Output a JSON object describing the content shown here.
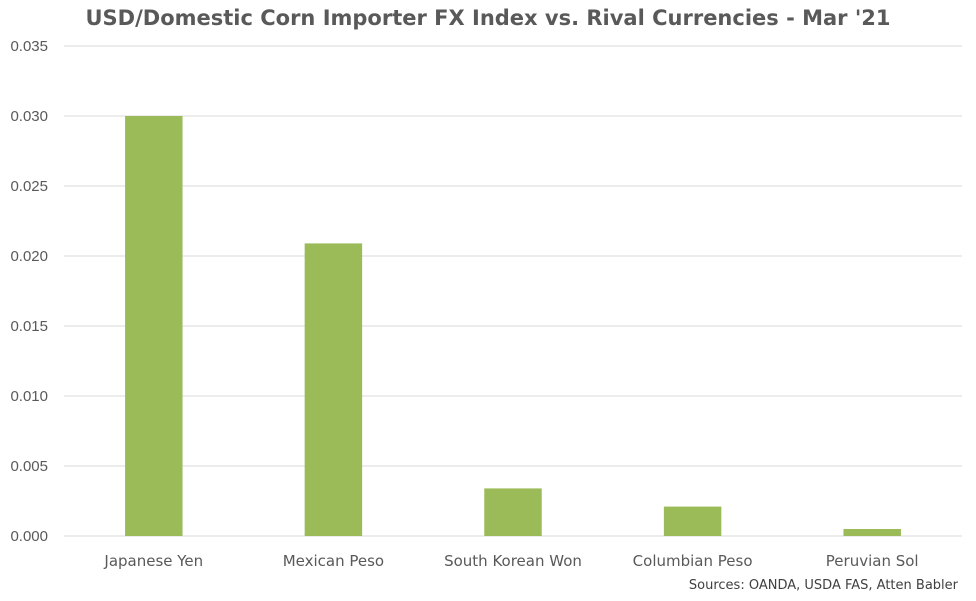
{
  "chart_data": {
    "type": "bar",
    "title": "USD/Domestic Corn Importer FX Index vs. Rival Currencies - Mar '21",
    "categories": [
      "Japanese Yen",
      "Mexican Peso",
      "South Korean Won",
      "Columbian Peso",
      "Peruvian Sol"
    ],
    "values": [
      0.03,
      0.0209,
      0.0034,
      0.0021,
      0.0005
    ],
    "ylim": [
      0,
      0.035
    ],
    "yticks": [
      "0.000",
      "0.005",
      "0.010",
      "0.015",
      "0.020",
      "0.025",
      "0.030",
      "0.035"
    ],
    "grid": true,
    "legend": "none",
    "bar_color": "#9BBB59",
    "grid_color": "#D9D9D9"
  },
  "source_note": "Sources: OANDA, USDA FAS, Atten Babler"
}
